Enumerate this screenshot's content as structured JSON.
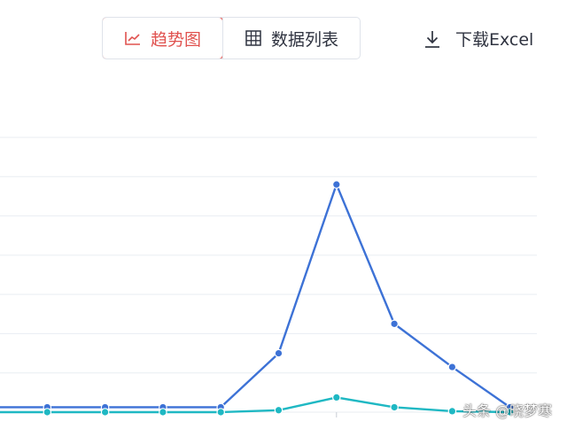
{
  "toolbar": {
    "tabs": [
      {
        "label": "趋势图",
        "icon": "trend-chart-icon",
        "active": true
      },
      {
        "label": "数据列表",
        "icon": "table-grid-icon",
        "active": false
      }
    ],
    "download_label": "下载Excel",
    "download_icon": "download-icon"
  },
  "colors": {
    "accent": "#e0524f",
    "series_blue": "#3d72d6",
    "series_teal": "#1fb8c3",
    "grid": "#e9edf2"
  },
  "watermark": "头条 @晓梦寒",
  "chart_data": {
    "type": "line",
    "x": [
      0,
      1,
      2,
      3,
      4,
      5,
      6,
      7,
      8,
      9
    ],
    "series": [
      {
        "values": [
          0.5,
          0.5,
          0.5,
          0.5,
          0.5,
          6.0,
          23.2,
          9.0,
          4.6,
          0.5
        ]
      },
      {
        "values": [
          0.0,
          0.0,
          0.0,
          0.0,
          0.0,
          0.2,
          1.5,
          0.5,
          0.1,
          0.0
        ]
      }
    ],
    "ylim": [
      0,
      28
    ],
    "grid": true,
    "x_tick_labels": [
      "",
      "",
      "",
      "",
      "",
      "",
      "",
      "",
      "",
      ""
    ]
  }
}
